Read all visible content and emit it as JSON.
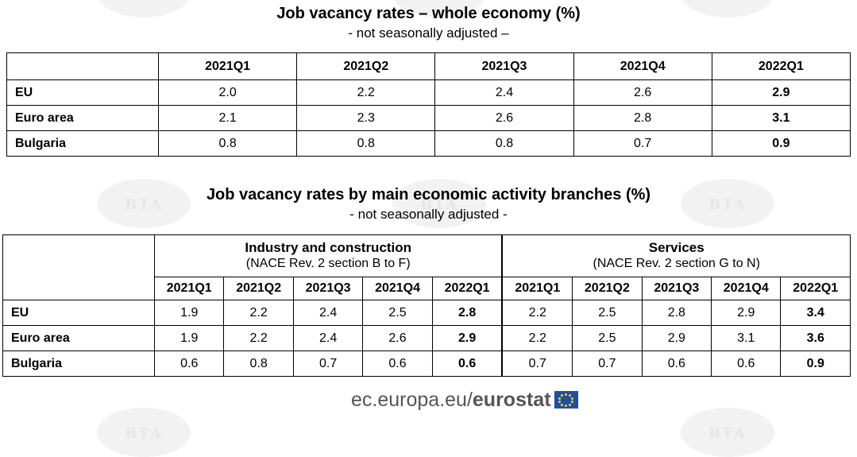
{
  "watermark_text": "BTA",
  "table1": {
    "title": "Job vacancy rates – whole economy (%)",
    "subtitle": "- not seasonally adjusted –",
    "columns": [
      "2021Q1",
      "2021Q2",
      "2021Q3",
      "2021Q4",
      "2022Q1"
    ],
    "rows": [
      {
        "label": "EU",
        "values": [
          "2.0",
          "2.2",
          "2.4",
          "2.6",
          "2.9"
        ]
      },
      {
        "label": "Euro area",
        "values": [
          "2.1",
          "2.3",
          "2.6",
          "2.8",
          "3.1"
        ]
      },
      {
        "label": "Bulgaria",
        "values": [
          "0.8",
          "0.8",
          "0.8",
          "0.7",
          "0.9"
        ]
      }
    ]
  },
  "table2": {
    "title": "Job vacancy rates by main economic activity branches (%)",
    "subtitle": "- not seasonally adjusted -",
    "groups": [
      {
        "name": "Industry and construction",
        "note": "(NACE Rev. 2 section B to F)"
      },
      {
        "name": "Services",
        "note": "(NACE Rev. 2 section G to N)"
      }
    ],
    "columns": [
      "2021Q1",
      "2021Q2",
      "2021Q3",
      "2021Q4",
      "2022Q1",
      "2021Q1",
      "2021Q2",
      "2021Q3",
      "2021Q4",
      "2022Q1"
    ],
    "rows": [
      {
        "label": "EU",
        "values": [
          "1.9",
          "2.2",
          "2.4",
          "2.5",
          "2.8",
          "2.2",
          "2.5",
          "2.8",
          "2.9",
          "3.4"
        ]
      },
      {
        "label": "Euro area",
        "values": [
          "1.9",
          "2.2",
          "2.4",
          "2.6",
          "2.9",
          "2.2",
          "2.5",
          "2.9",
          "3.1",
          "3.6"
        ]
      },
      {
        "label": "Bulgaria",
        "values": [
          "0.6",
          "0.8",
          "0.7",
          "0.6",
          "0.6",
          "0.7",
          "0.7",
          "0.6",
          "0.6",
          "0.9"
        ]
      }
    ]
  },
  "footer": {
    "domain": "ec.europa.eu/",
    "brand": "eurostat",
    "logo_icon": "eu-flag-icon"
  },
  "colors": {
    "text": "#000000",
    "footer_text": "#555555",
    "flag_blue": "#1f4fa3",
    "flag_star": "#ffd200",
    "watermark": "#f2f2f2"
  }
}
